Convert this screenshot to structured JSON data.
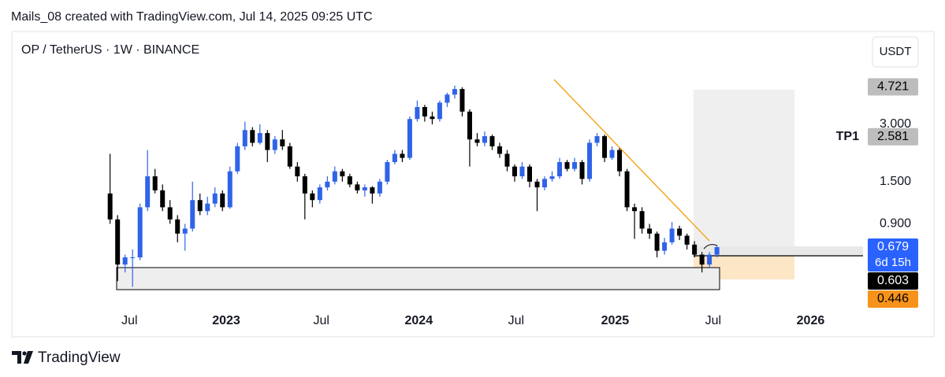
{
  "chart_data": {
    "type": "candlestick",
    "attribution": "Mails_08 created with TradingView.com, Jul 14, 2025 09:25 UTC",
    "title": "OP / TetherUS · 1W · BINANCE",
    "currency": "USDT",
    "brand": "TradingView",
    "log_scale": true,
    "up_color": "#2f63e8",
    "down_color": "#000000",
    "xlim": [
      -12.8,
      100.5
    ],
    "xticks": [
      {
        "value": 2.6,
        "label": "Jul"
      },
      {
        "value": 15.5,
        "label": "2023"
      },
      {
        "value": 28.2,
        "label": "Jul"
      },
      {
        "value": 41.2,
        "label": "2024"
      },
      {
        "value": 54.2,
        "label": "Jul"
      },
      {
        "value": 67.4,
        "label": "2025"
      },
      {
        "value": 80.5,
        "label": "Jul"
      },
      {
        "value": 93.5,
        "label": "2026"
      }
    ],
    "ylim": [
      0.314,
      8.8
    ],
    "yticks": [
      {
        "value": 0.9,
        "label": "0.900"
      },
      {
        "value": 1.5,
        "label": "1.500"
      },
      {
        "value": 3,
        "label": "3.000"
      }
    ],
    "price_labels": [
      {
        "value": 4.721,
        "color": "#bdbdbd",
        "text_color": "#000000"
      },
      {
        "value": 2.581,
        "color": "#bdbdbd",
        "text_color": "#000000",
        "name": "TP1"
      },
      {
        "value": 0.679,
        "color": "#2962ff",
        "text_color": "#ffffff",
        "sublabel": "6d 15h"
      },
      {
        "value": 0.603,
        "color": "#000000",
        "text_color": "#ffffff"
      },
      {
        "value": 0.446,
        "color": "#f7931a",
        "text_color": "#000000"
      }
    ],
    "ohlc": [
      [
        1.3,
        2.1,
        0.9,
        0.95
      ],
      [
        0.95,
        1.0,
        0.45,
        0.55
      ],
      [
        0.55,
        0.62,
        0.5,
        0.6
      ],
      [
        0.6,
        0.66,
        0.42,
        0.6
      ],
      [
        0.6,
        1.15,
        0.58,
        1.1
      ],
      [
        1.1,
        2.2,
        1.05,
        1.6
      ],
      [
        1.6,
        1.75,
        1.3,
        1.35
      ],
      [
        1.35,
        1.45,
        1.05,
        1.1
      ],
      [
        1.1,
        1.2,
        0.9,
        0.95
      ],
      [
        0.95,
        1.0,
        0.72,
        0.8
      ],
      [
        0.8,
        0.9,
        0.65,
        0.85
      ],
      [
        0.85,
        1.5,
        0.82,
        1.2
      ],
      [
        1.2,
        1.3,
        1.0,
        1.05
      ],
      [
        1.05,
        1.25,
        1.0,
        1.15
      ],
      [
        1.15,
        1.4,
        1.1,
        1.3
      ],
      [
        1.3,
        1.35,
        1.05,
        1.1
      ],
      [
        1.1,
        1.8,
        1.08,
        1.7
      ],
      [
        1.7,
        2.4,
        1.65,
        2.3
      ],
      [
        2.3,
        3.1,
        2.2,
        2.8
      ],
      [
        2.8,
        2.9,
        2.3,
        2.4
      ],
      [
        2.4,
        3.0,
        2.35,
        2.7
      ],
      [
        2.7,
        2.8,
        1.9,
        2.2
      ],
      [
        2.2,
        2.6,
        2.1,
        2.5
      ],
      [
        2.5,
        2.8,
        2.2,
        2.3
      ],
      [
        2.3,
        2.4,
        1.75,
        1.8
      ],
      [
        1.8,
        1.9,
        1.5,
        1.6
      ],
      [
        1.6,
        1.65,
        0.95,
        1.3
      ],
      [
        1.3,
        1.35,
        1.1,
        1.2
      ],
      [
        1.2,
        1.45,
        1.15,
        1.4
      ],
      [
        1.4,
        1.6,
        1.35,
        1.5
      ],
      [
        1.5,
        1.8,
        1.45,
        1.7
      ],
      [
        1.7,
        1.75,
        1.5,
        1.6
      ],
      [
        1.6,
        1.65,
        1.4,
        1.45
      ],
      [
        1.45,
        1.5,
        1.3,
        1.35
      ],
      [
        1.35,
        1.45,
        1.25,
        1.4
      ],
      [
        1.4,
        1.42,
        1.15,
        1.3
      ],
      [
        1.3,
        1.55,
        1.25,
        1.5
      ],
      [
        1.5,
        1.95,
        1.45,
        1.9
      ],
      [
        1.9,
        2.2,
        1.85,
        2.1
      ],
      [
        2.1,
        2.2,
        1.9,
        2.0
      ],
      [
        2.0,
        3.3,
        1.95,
        3.2
      ],
      [
        3.2,
        4.0,
        3.1,
        3.7
      ],
      [
        3.7,
        3.8,
        3.1,
        3.3
      ],
      [
        3.3,
        3.5,
        3.0,
        3.2
      ],
      [
        3.2,
        4.0,
        3.1,
        3.9
      ],
      [
        3.9,
        4.4,
        3.7,
        4.3
      ],
      [
        4.3,
        4.8,
        4.1,
        4.6
      ],
      [
        4.6,
        4.7,
        3.3,
        3.5
      ],
      [
        3.5,
        3.6,
        1.8,
        2.5
      ],
      [
        2.5,
        2.7,
        2.3,
        2.4
      ],
      [
        2.4,
        2.75,
        2.3,
        2.6
      ],
      [
        2.6,
        2.65,
        2.2,
        2.3
      ],
      [
        2.3,
        2.4,
        2.0,
        2.1
      ],
      [
        2.1,
        2.2,
        1.7,
        1.8
      ],
      [
        1.8,
        1.85,
        1.5,
        1.6
      ],
      [
        1.6,
        1.9,
        1.55,
        1.8
      ],
      [
        1.8,
        1.85,
        1.4,
        1.5
      ],
      [
        1.5,
        1.55,
        1.05,
        1.4
      ],
      [
        1.4,
        1.6,
        1.35,
        1.55
      ],
      [
        1.55,
        1.7,
        1.5,
        1.6
      ],
      [
        1.6,
        2.0,
        1.55,
        1.9
      ],
      [
        1.9,
        1.95,
        1.7,
        1.75
      ],
      [
        1.75,
        2.0,
        1.7,
        1.9
      ],
      [
        1.9,
        1.95,
        1.45,
        1.55
      ],
      [
        1.55,
        2.5,
        1.5,
        2.4
      ],
      [
        2.4,
        2.7,
        2.3,
        2.6
      ],
      [
        2.6,
        2.65,
        1.9,
        2.0
      ],
      [
        2.0,
        2.3,
        1.95,
        2.2
      ],
      [
        2.2,
        2.25,
        1.6,
        1.7
      ],
      [
        1.7,
        1.75,
        1.05,
        1.1
      ],
      [
        1.1,
        1.15,
        0.75,
        1.05
      ],
      [
        1.05,
        1.1,
        0.8,
        0.85
      ],
      [
        0.85,
        0.9,
        0.75,
        0.8
      ],
      [
        0.8,
        0.82,
        0.6,
        0.65
      ],
      [
        0.65,
        0.76,
        0.62,
        0.72
      ],
      [
        0.72,
        0.92,
        0.7,
        0.85
      ],
      [
        0.85,
        0.88,
        0.74,
        0.78
      ],
      [
        0.78,
        0.8,
        0.66,
        0.7
      ],
      [
        0.7,
        0.73,
        0.6,
        0.62
      ],
      [
        0.62,
        0.64,
        0.5,
        0.55
      ],
      [
        0.55,
        0.64,
        0.53,
        0.62
      ],
      [
        0.62,
        0.69,
        0.6,
        0.679
      ]
    ]
  }
}
